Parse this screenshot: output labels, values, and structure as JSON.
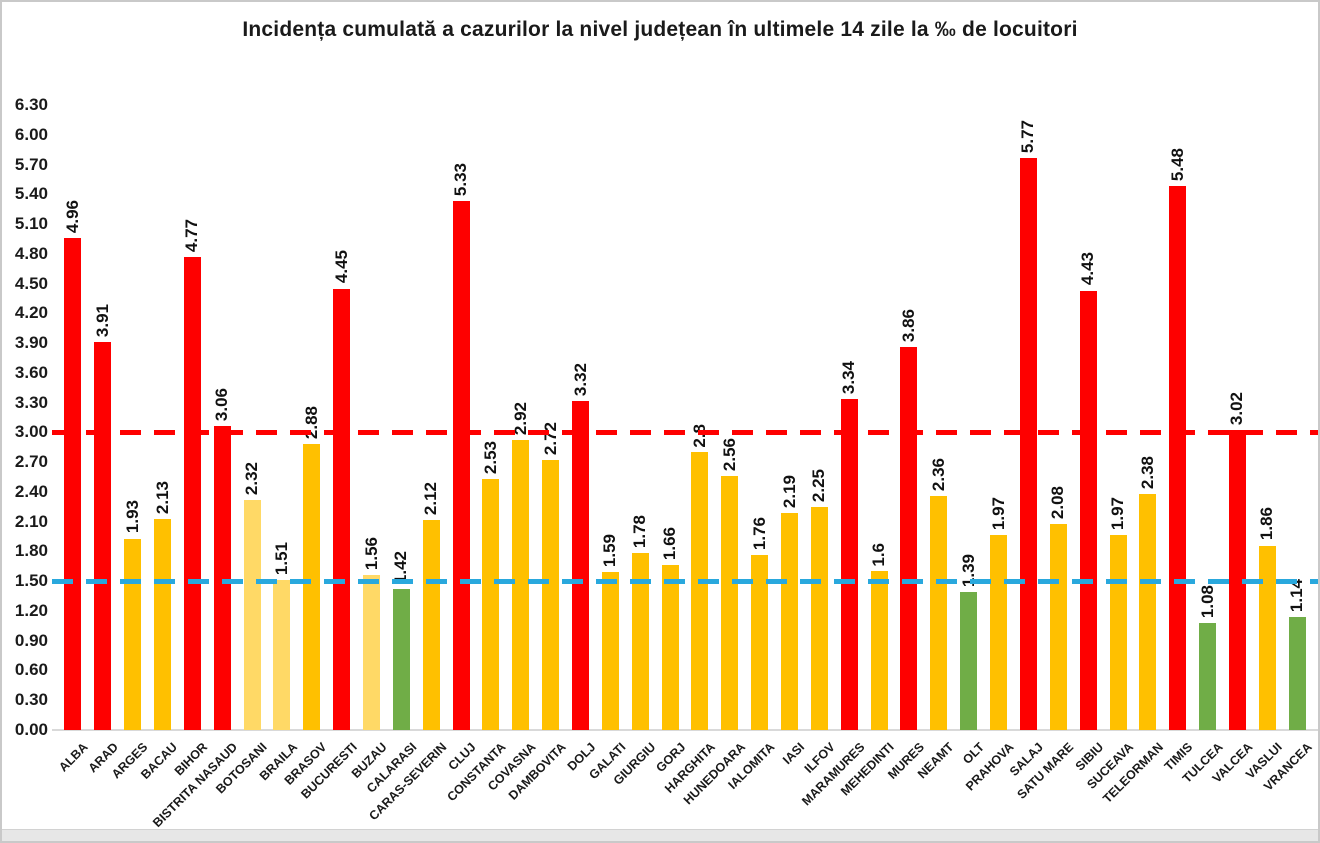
{
  "title": "Incidența cumulată a cazurilor la nivel județean în ultimele 14 zile la ‰ de locuitori",
  "chart_data": {
    "type": "bar",
    "title": "Incidența cumulată a cazurilor la nivel județean în ultimele 14 zile la ‰ de locuitori",
    "xlabel": "",
    "ylabel": "",
    "grid": false,
    "legend": "none",
    "ylim": [
      0,
      6.3
    ],
    "ytick_step": 0.3,
    "yticks": [
      "6.30",
      "6.00",
      "5.70",
      "5.40",
      "5.10",
      "4.80",
      "4.50",
      "4.20",
      "3.90",
      "3.60",
      "3.30",
      "3.00",
      "2.70",
      "2.40",
      "2.10",
      "1.80",
      "1.50",
      "1.20",
      "0.90",
      "0.60",
      "0.30",
      "0.00"
    ],
    "categories": [
      "ALBA",
      "ARAD",
      "ARGES",
      "BACAU",
      "BIHOR",
      "BISTRITA NASAUD",
      "BOTOSANI",
      "BRAILA",
      "BRASOV",
      "BUCURESTI",
      "BUZAU",
      "CALARASI",
      "CARAS-SEVERIN",
      "CLUJ",
      "CONSTANTA",
      "COVASNA",
      "DAMBOVITA",
      "DOLJ",
      "GALATI",
      "GIURGIU",
      "GORJ",
      "HARGHITA",
      "HUNEDOARA",
      "IALOMITA",
      "IASI",
      "ILFOV",
      "MARAMURES",
      "MEHEDINTI",
      "MURES",
      "NEAMT",
      "OLT",
      "PRAHOVA",
      "SALAJ",
      "SATU MARE",
      "SIBIU",
      "SUCEAVA",
      "TELEORMAN",
      "TIMIS",
      "TULCEA",
      "VALCEA",
      "VASLUI",
      "VRANCEA"
    ],
    "values": [
      4.96,
      3.91,
      1.93,
      2.13,
      4.77,
      3.06,
      2.32,
      1.51,
      2.88,
      4.45,
      1.56,
      1.42,
      2.12,
      5.33,
      2.53,
      2.92,
      2.72,
      3.32,
      1.59,
      1.78,
      1.66,
      2.8,
      2.56,
      1.76,
      2.19,
      2.25,
      3.34,
      1.6,
      3.86,
      2.36,
      1.39,
      1.97,
      5.77,
      2.08,
      4.43,
      1.97,
      2.38,
      5.48,
      1.08,
      3.02,
      1.86,
      1.14
    ],
    "value_labels": [
      "4.96",
      "3.91",
      "1.93",
      "2.13",
      "4.77",
      "3.06",
      "2.32",
      "1.51",
      "2.88",
      "4.45",
      "1.56",
      "1.42",
      "2.12",
      "5.33",
      "2.53",
      "2.92",
      "2.72",
      "3.32",
      "1.59",
      "1.78",
      "1.66",
      "2.8",
      "2.56",
      "1.76",
      "2.19",
      "2.25",
      "3.34",
      "1.6",
      "3.86",
      "2.36",
      "1.39",
      "1.97",
      "5.77",
      "2.08",
      "4.43",
      "1.97",
      "2.38",
      "5.48",
      "1.08",
      "3.02",
      "1.86",
      "1.14"
    ],
    "bar_color_keys": [
      "red",
      "red",
      "gold",
      "gold",
      "red",
      "red",
      "pale_gold",
      "pale_gold",
      "gold",
      "red",
      "pale_gold",
      "green",
      "gold",
      "red",
      "gold",
      "gold",
      "gold",
      "red",
      "gold",
      "gold",
      "gold",
      "gold",
      "gold",
      "gold",
      "gold",
      "gold",
      "red",
      "gold",
      "red",
      "gold",
      "green",
      "gold",
      "red",
      "gold",
      "red",
      "gold",
      "gold",
      "red",
      "green",
      "red",
      "gold",
      "green"
    ],
    "colors": {
      "red": "#fe0000",
      "gold": "#ffc000",
      "pale_gold": "#ffd966",
      "green": "#70ad47",
      "baseline": "#d9d9d9",
      "text": "#1a1a1a"
    },
    "reference_lines": [
      {
        "name": "red-threshold-line",
        "value": 3.0,
        "color": "#fe0000",
        "style": "dashed"
      },
      {
        "name": "blue-threshold-line",
        "value": 1.5,
        "color": "#29a8dd",
        "style": "dashed"
      }
    ]
  }
}
